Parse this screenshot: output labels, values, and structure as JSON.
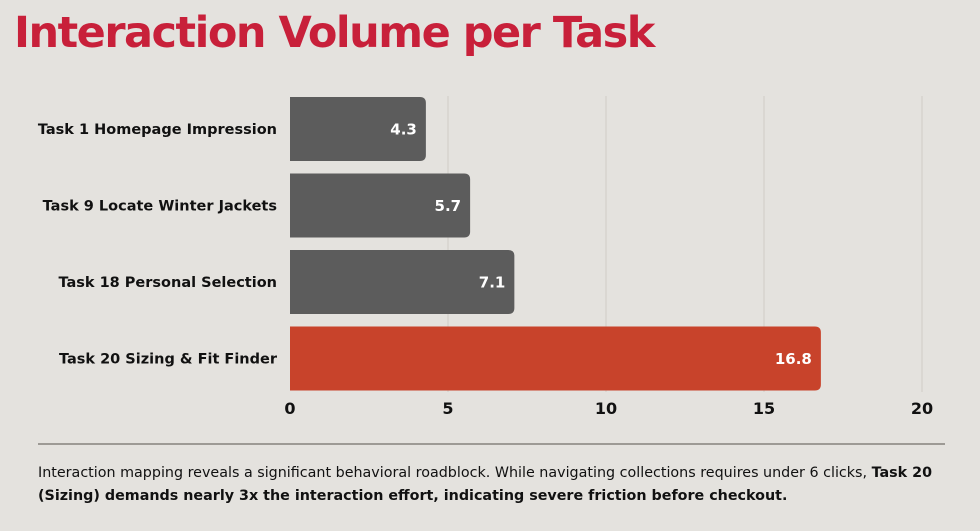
{
  "title": "Interaction Volume per Task",
  "colors": {
    "title": "#c8203a",
    "bar_default": "#5c5c5c",
    "bar_highlight": "#c8432b",
    "background": "#e4e2de"
  },
  "chart_data": {
    "type": "bar",
    "orientation": "horizontal",
    "categories": [
      "Task 1 Homepage Impression",
      "Task 9 Locate Winter Jackets",
      "Task 18 Personal Selection",
      "Task 20 Sizing & Fit Finder"
    ],
    "values": [
      4.3,
      5.7,
      7.1,
      16.8
    ],
    "value_labels": [
      "4.3",
      "5.7",
      "7.1",
      "16.8"
    ],
    "highlight_index": 3,
    "xlim": [
      0,
      20
    ],
    "xticks": [
      0,
      5,
      10,
      15,
      20
    ],
    "xtick_labels": [
      "0",
      "5",
      "10",
      "15",
      "20"
    ],
    "grid": "vertical"
  },
  "caption": {
    "normal": "Interaction mapping reveals a significant behavioral roadblock. While navigating collections requires under 6 clicks, ",
    "bold": "Task 20 (Sizing) demands nearly 3x the interaction effort, indicating severe friction before checkout."
  }
}
